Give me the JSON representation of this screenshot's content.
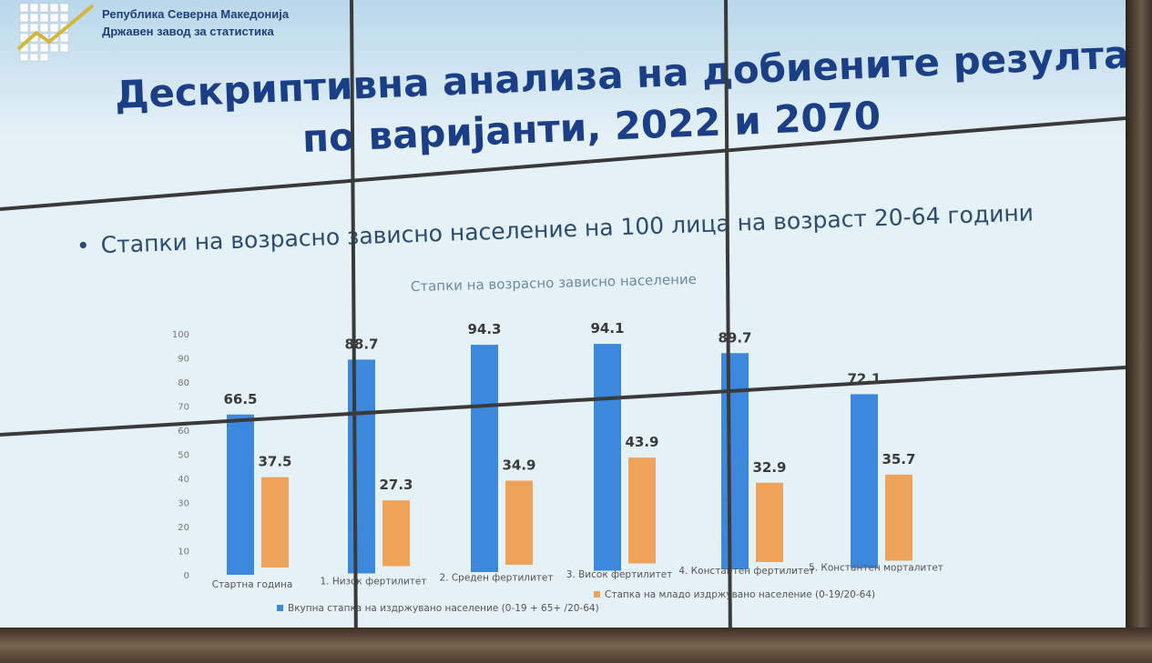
{
  "header": {
    "org_line1": "Република Северна Македонија",
    "org_line2": "Државен завод за статистика",
    "logo_icon": "statistics-logo-icon"
  },
  "slide": {
    "title_line1": "Дескриптивна анализа на добиените резултати",
    "title_line2": "по варијанти, 2022 и 2070",
    "bullet": "Стапки на возрасно зависно население на 100 лица на возраст 20-64 години"
  },
  "colors": {
    "series1": "#3b88dc",
    "series2": "#eea25a"
  },
  "chart_data": {
    "type": "bar",
    "title": "Стапки на возрасно зависно население",
    "categories": [
      "Стартна година",
      "1. Низок фертилитет",
      "2. Среден фертилитет",
      "3. Висок фертилитет",
      "4. Константен фертилитет",
      "5. Константен морталитет"
    ],
    "series": [
      {
        "name": "Вкупна стапка на издржувано население  (0-19 + 65+ /20-64)",
        "values": [
          66.5,
          88.7,
          94.3,
          94.1,
          89.7,
          72.1
        ]
      },
      {
        "name": "Стапка на младо издржувано население (0-19/20-64)",
        "values": [
          37.5,
          27.3,
          34.9,
          43.9,
          32.9,
          35.7
        ]
      }
    ],
    "yticks": [
      "0",
      "10",
      "20",
      "30",
      "40",
      "50",
      "60",
      "70",
      "80",
      "90",
      "100"
    ],
    "ylim": [
      0,
      100
    ],
    "grid": false,
    "legend_position": "bottom"
  }
}
